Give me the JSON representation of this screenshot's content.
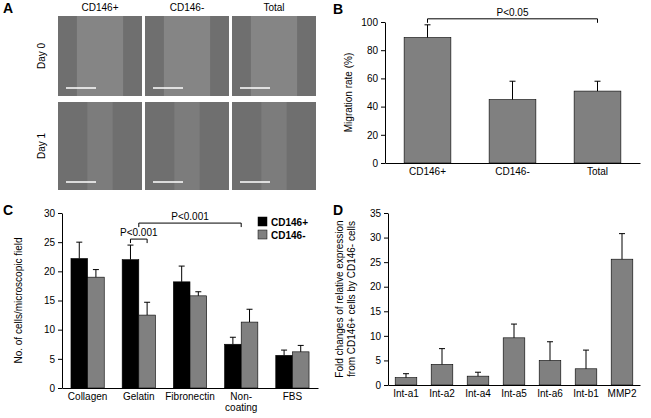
{
  "panel_a": {
    "title": "A",
    "columns": [
      "CD146+",
      "CD146-",
      "Total"
    ],
    "rows": [
      "Day 0",
      "Day 1"
    ]
  },
  "chart_data": [
    {
      "type": "bar",
      "title": "B",
      "y_label": "Migration rate (%)",
      "categories": [
        "CD146+",
        "CD146-",
        "Total"
      ],
      "series": [
        {
          "color": "#808080",
          "values": [
            89,
            45,
            51
          ],
          "errors": [
            9,
            13,
            7
          ]
        }
      ],
      "ylim": [
        0,
        100
      ],
      "yticks": [
        0,
        20,
        40,
        60,
        80,
        100
      ],
      "annotations": [
        {
          "text": "P<0.05",
          "from": "CD146+",
          "to": "Total"
        }
      ]
    },
    {
      "type": "bar",
      "title": "C",
      "y_label": "No. of cells/microscopic field",
      "categories": [
        "Collagen",
        "Gelatin",
        "Fibronectin",
        "Non-coating",
        "FBS"
      ],
      "series": [
        {
          "name": "CD146+",
          "color": "#000000",
          "values": [
            22.2,
            22,
            18.2,
            7.5,
            5.6
          ],
          "errors": [
            2.8,
            2.5,
            2.7,
            1.2,
            0.9
          ]
        },
        {
          "name": "CD146-",
          "color": "#808080",
          "values": [
            19,
            12.5,
            15.8,
            11.3,
            6.2
          ],
          "errors": [
            1.3,
            2.2,
            0.7,
            2.2,
            1.1
          ]
        }
      ],
      "ylim": [
        0,
        30
      ],
      "yticks": [
        0,
        5,
        10,
        15,
        20,
        25,
        30
      ],
      "legend": "top-right",
      "annotations": [
        {
          "text": "P<0.001",
          "category": "Gelatin"
        },
        {
          "text": "P<0.001",
          "from": "Gelatin",
          "to": "Non-coating"
        }
      ]
    },
    {
      "type": "bar",
      "title": "D",
      "y_label": [
        "Fold changes of relative expression",
        "from CD146+ cells by CD146- cells"
      ],
      "categories": [
        "Int-a1",
        "Int-a2",
        "Int-a4",
        "Int-a5",
        "Int-a6",
        "Int-b1",
        "MMP2"
      ],
      "series": [
        {
          "color": "#808080",
          "values": [
            1.5,
            4.2,
            1.8,
            9.6,
            5,
            3.3,
            25.6
          ],
          "errors": [
            0.8,
            3.2,
            0.8,
            2.8,
            3.8,
            3.8,
            5.2
          ]
        }
      ],
      "ylim": [
        0,
        35
      ],
      "yticks": [
        0,
        5,
        10,
        15,
        20,
        25,
        30,
        35
      ]
    }
  ]
}
